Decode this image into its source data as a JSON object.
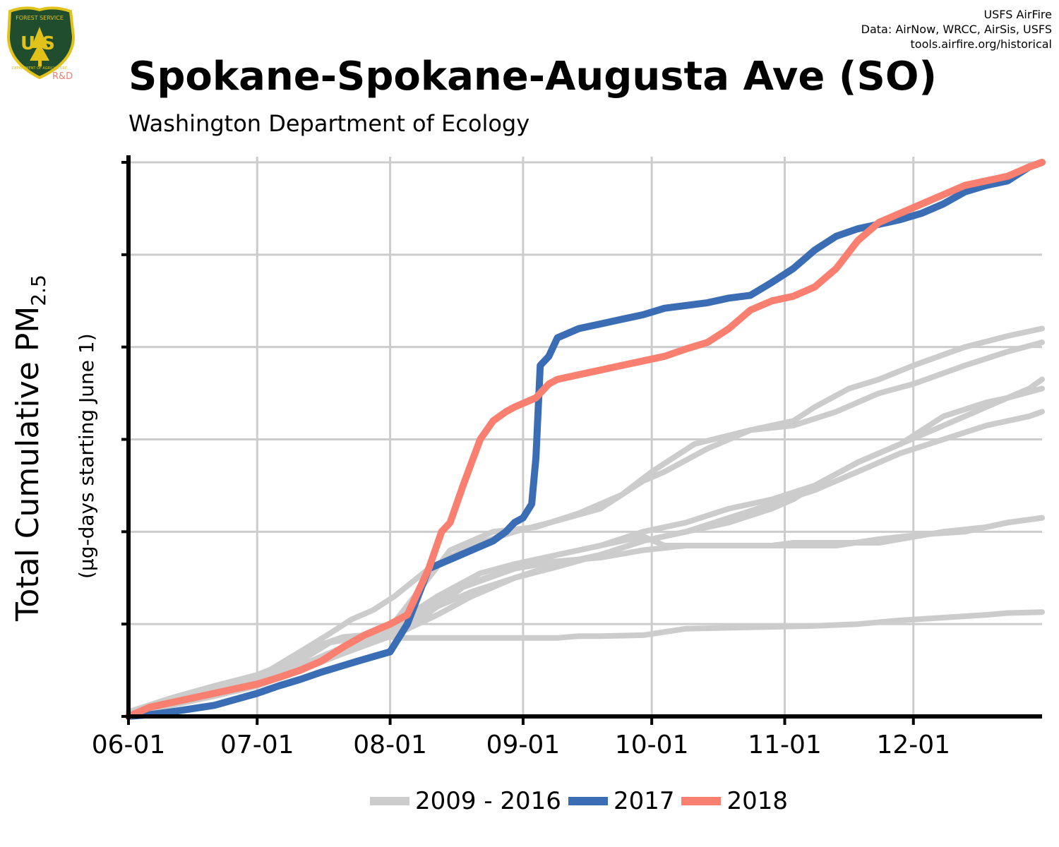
{
  "header": {
    "title": "Spokane-Spokane-Augusta Ave (SO)",
    "subtitle": "Washington Department of Ecology",
    "credits": [
      "USFS AirFire",
      "Data: AirNow, WRCC, AirSis, USFS",
      "tools.airfire.org/historical"
    ],
    "logo": {
      "text_top": "FOREST SERVICE",
      "text_letters": "U S",
      "text_bottom": "DEPARTMENT OF AGRICULTURE",
      "tag": "R&D",
      "colors": {
        "shield": "#1f4d2e",
        "gold": "#e0c21a",
        "tag": "#f08070"
      }
    }
  },
  "chart_data": {
    "type": "line",
    "title": "Spokane-Spokane-Augusta Ave (SO)",
    "subtitle": "Washington Department of Ecology",
    "xlabel": "",
    "ylabel": "Total Cumulative PM",
    "ylabel_sub": "2.5",
    "ylabel_note": "(µg-days starting June 1)",
    "x_ticks": [
      "06-01",
      "07-01",
      "08-01",
      "09-01",
      "10-01",
      "11-01",
      "12-01"
    ],
    "x_tick_days": [
      0,
      30,
      61,
      92,
      122,
      153,
      183
    ],
    "xlim": [
      0,
      213
    ],
    "ylim": [
      0,
      6
    ],
    "y_tick_labels_shown": false,
    "y_gridlines": [
      1,
      2,
      3,
      4,
      5,
      6
    ],
    "grid": true,
    "legend_position": "bottom",
    "legend": [
      {
        "label": "2009 - 2016",
        "color": "#cccccc"
      },
      {
        "label": "2017",
        "color": "#3b6db5"
      },
      {
        "label": "2018",
        "color": "#f98070"
      }
    ],
    "background_series": [
      {
        "name": "2009 - 2016",
        "x": [
          0,
          10,
          20,
          30,
          38,
          45,
          50,
          55,
          60,
          65,
          75,
          85,
          95,
          105,
          115,
          122,
          132,
          145,
          155,
          160,
          168,
          175,
          183,
          195,
          205,
          213
        ],
        "y": [
          0.05,
          0.2,
          0.33,
          0.45,
          0.6,
          0.78,
          0.86,
          0.88,
          0.9,
          1.2,
          1.8,
          2.0,
          2.05,
          2.2,
          2.4,
          2.65,
          2.95,
          3.1,
          3.2,
          3.35,
          3.55,
          3.65,
          3.8,
          4.0,
          4.12,
          4.2
        ]
      },
      {
        "name": "2009 - 2016",
        "x": [
          0,
          10,
          20,
          30,
          40,
          47,
          52,
          57,
          62,
          70,
          80,
          90,
          100,
          110,
          120,
          125,
          135,
          145,
          155,
          165,
          175,
          183,
          195,
          205,
          213
        ],
        "y": [
          0.05,
          0.17,
          0.3,
          0.42,
          0.7,
          0.9,
          1.05,
          1.15,
          1.3,
          1.6,
          1.85,
          2.0,
          2.12,
          2.25,
          2.55,
          2.65,
          2.9,
          3.1,
          3.15,
          3.3,
          3.5,
          3.6,
          3.8,
          3.95,
          4.05
        ]
      },
      {
        "name": "2009 - 2016",
        "x": [
          0,
          10,
          20,
          30,
          40,
          47,
          53,
          60,
          62,
          70,
          80,
          90,
          100,
          105,
          110,
          120,
          130,
          140,
          150,
          160,
          170,
          180,
          190,
          200,
          205,
          213
        ],
        "y": [
          0.04,
          0.15,
          0.25,
          0.38,
          0.6,
          0.8,
          0.85,
          0.88,
          0.85,
          0.85,
          0.85,
          0.85,
          0.85,
          0.87,
          0.87,
          0.88,
          0.95,
          0.96,
          0.97,
          0.98,
          1.0,
          1.04,
          1.07,
          1.1,
          1.12,
          1.13
        ]
      },
      {
        "name": "2009 - 2016",
        "x": [
          0,
          10,
          20,
          30,
          40,
          50,
          58,
          62,
          70,
          80,
          90,
          100,
          110,
          120,
          125,
          135,
          145,
          150,
          155,
          165,
          175,
          180,
          190,
          200,
          205,
          213
        ],
        "y": [
          0.03,
          0.14,
          0.25,
          0.38,
          0.55,
          0.75,
          0.88,
          0.95,
          1.2,
          1.45,
          1.6,
          1.75,
          1.85,
          1.95,
          1.85,
          1.85,
          1.85,
          1.85,
          1.88,
          1.88,
          1.88,
          1.92,
          2.0,
          2.05,
          2.1,
          2.15
        ]
      },
      {
        "name": "2009 - 2016",
        "x": [
          0,
          10,
          20,
          30,
          40,
          50,
          60,
          62,
          72,
          82,
          90,
          100,
          110,
          120,
          130,
          140,
          150,
          160,
          170,
          180,
          190,
          200,
          205,
          210,
          213
        ],
        "y": [
          0.03,
          0.13,
          0.22,
          0.33,
          0.5,
          0.7,
          0.9,
          1.0,
          1.3,
          1.55,
          1.65,
          1.75,
          1.85,
          2.0,
          2.1,
          2.25,
          2.35,
          2.5,
          2.75,
          2.95,
          3.25,
          3.4,
          3.45,
          3.55,
          3.65
        ]
      },
      {
        "name": "2009 - 2016",
        "x": [
          0,
          10,
          20,
          30,
          40,
          50,
          60,
          62,
          72,
          80,
          90,
          100,
          110,
          120,
          130,
          140,
          150,
          155,
          160,
          170,
          180,
          190,
          200,
          205,
          213
        ],
        "y": [
          0.03,
          0.12,
          0.22,
          0.35,
          0.5,
          0.68,
          0.85,
          0.88,
          1.1,
          1.3,
          1.5,
          1.65,
          1.75,
          1.9,
          2.0,
          2.1,
          2.25,
          2.35,
          2.5,
          2.75,
          2.95,
          3.15,
          3.35,
          3.45,
          3.55
        ]
      },
      {
        "name": "2009 - 2016",
        "x": [
          0,
          10,
          20,
          30,
          40,
          50,
          60,
          62,
          70,
          78,
          90,
          100,
          110,
          120,
          130,
          140,
          150,
          155,
          160,
          165,
          175,
          185,
          195,
          205,
          213
        ],
        "y": [
          0.04,
          0.15,
          0.26,
          0.38,
          0.55,
          0.72,
          0.92,
          0.95,
          1.12,
          1.4,
          1.6,
          1.68,
          1.72,
          1.8,
          1.85,
          1.85,
          1.85,
          1.85,
          1.85,
          1.85,
          1.92,
          1.97,
          2.0,
          2.1,
          2.15
        ]
      },
      {
        "name": "2009 - 2016",
        "x": [
          0,
          10,
          20,
          30,
          40,
          50,
          60,
          62,
          70,
          80,
          90,
          100,
          110,
          120,
          130,
          140,
          150,
          160,
          170,
          180,
          190,
          200,
          210,
          213
        ],
        "y": [
          0.04,
          0.14,
          0.24,
          0.36,
          0.52,
          0.7,
          0.9,
          0.93,
          1.15,
          1.35,
          1.5,
          1.62,
          1.75,
          1.9,
          2.0,
          2.15,
          2.3,
          2.45,
          2.65,
          2.85,
          3.0,
          3.15,
          3.25,
          3.3
        ]
      }
    ],
    "series": [
      {
        "name": "2017",
        "color": "#3b6db5",
        "x": [
          0,
          5,
          10,
          20,
          30,
          35,
          40,
          45,
          50,
          55,
          61,
          65,
          70,
          75,
          80,
          85,
          88,
          90,
          92,
          94,
          95,
          96,
          98,
          100,
          105,
          110,
          115,
          120,
          125,
          130,
          135,
          140,
          145,
          150,
          155,
          160,
          165,
          170,
          175,
          180,
          185,
          190,
          195,
          200,
          205,
          210,
          213
        ],
        "y": [
          0.0,
          0.02,
          0.05,
          0.12,
          0.25,
          0.33,
          0.4,
          0.48,
          0.55,
          0.62,
          0.7,
          1.0,
          1.6,
          1.7,
          1.8,
          1.9,
          2.0,
          2.1,
          2.15,
          2.3,
          2.8,
          3.8,
          3.9,
          4.1,
          4.2,
          4.25,
          4.3,
          4.35,
          4.42,
          4.45,
          4.48,
          4.53,
          4.56,
          4.7,
          4.85,
          5.05,
          5.2,
          5.28,
          5.33,
          5.38,
          5.45,
          5.55,
          5.68,
          5.75,
          5.8,
          5.95,
          6.0
        ]
      },
      {
        "name": "2018",
        "color": "#f98070",
        "x": [
          0,
          5,
          10,
          20,
          30,
          35,
          40,
          45,
          50,
          55,
          61,
          65,
          70,
          73,
          75,
          78,
          80,
          82,
          85,
          88,
          90,
          95,
          98,
          100,
          105,
          110,
          115,
          120,
          125,
          130,
          135,
          140,
          145,
          150,
          155,
          160,
          165,
          170,
          175,
          180,
          185,
          190,
          195,
          200,
          205,
          210,
          213
        ],
        "y": [
          0.0,
          0.1,
          0.15,
          0.25,
          0.35,
          0.42,
          0.5,
          0.6,
          0.75,
          0.88,
          1.0,
          1.1,
          1.6,
          2.0,
          2.1,
          2.5,
          2.75,
          3.0,
          3.2,
          3.3,
          3.35,
          3.45,
          3.6,
          3.65,
          3.7,
          3.75,
          3.8,
          3.85,
          3.9,
          3.98,
          4.05,
          4.2,
          4.4,
          4.5,
          4.55,
          4.65,
          4.85,
          5.15,
          5.35,
          5.45,
          5.55,
          5.65,
          5.75,
          5.8,
          5.85,
          5.95,
          6.0
        ]
      }
    ]
  }
}
